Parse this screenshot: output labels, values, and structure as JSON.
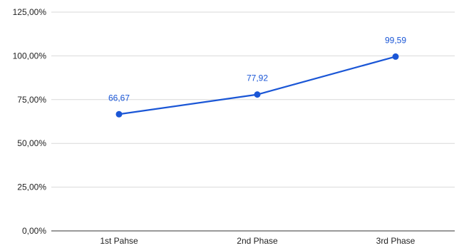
{
  "chart_data": {
    "type": "line",
    "categories": [
      "1st Pahse",
      "2nd Phase",
      "3rd Phase"
    ],
    "series": [
      {
        "values": [
          66.67,
          77.92,
          99.59
        ],
        "data_labels": [
          "66,67",
          "77,92",
          "99,59"
        ],
        "color": "#1a56d6"
      }
    ],
    "y_ticks": [
      0,
      25,
      50,
      75,
      100,
      125
    ],
    "y_tick_labels": [
      "0,00%",
      "25,00%",
      "50,00%",
      "75,00%",
      "100,00%",
      "125,00%"
    ],
    "ylim": [
      0,
      125
    ],
    "grid": true,
    "title": "",
    "xlabel": "",
    "ylabel": "",
    "colors": {
      "series": "#1a56d6",
      "grid": "#d9d9d9",
      "axis": "#333333",
      "text": "#222222"
    }
  }
}
